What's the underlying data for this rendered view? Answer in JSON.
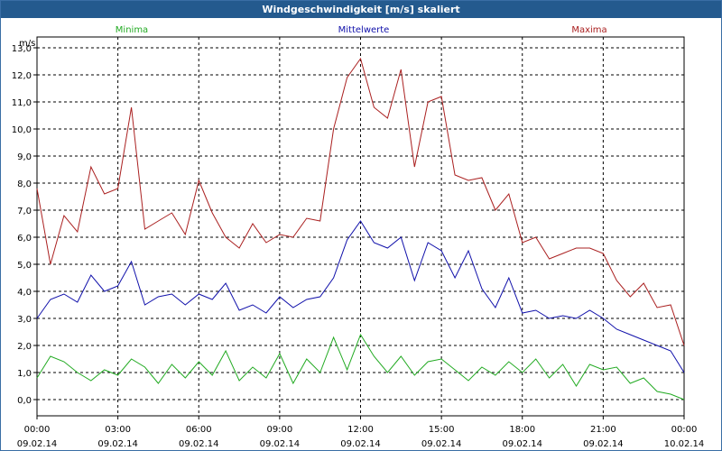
{
  "window": {
    "title": "Windgeschwindigkeit [m/s] skaliert"
  },
  "chart_data": {
    "type": "line",
    "title": "Windgeschwindigkeit [m/s] skaliert",
    "ylabel": "m/s",
    "xlabel": "",
    "ylim": [
      -0.6,
      13.4
    ],
    "y_ticks": [
      "0,0",
      "1,0",
      "2,0",
      "3,0",
      "4,0",
      "5,0",
      "6,0",
      "7,0",
      "8,0",
      "9,0",
      "10,0",
      "11,0",
      "12,0",
      "13,0"
    ],
    "x_ticks": [
      {
        "hour": 0,
        "time": "00:00",
        "date": "09.02.14"
      },
      {
        "hour": 3,
        "time": "03:00",
        "date": "09.02.14"
      },
      {
        "hour": 6,
        "time": "06:00",
        "date": "09.02.14"
      },
      {
        "hour": 9,
        "time": "09:00",
        "date": "09.02.14"
      },
      {
        "hour": 12,
        "time": "12:00",
        "date": "09.02.14"
      },
      {
        "hour": 15,
        "time": "15:00",
        "date": "09.02.14"
      },
      {
        "hour": 18,
        "time": "18:00",
        "date": "09.02.14"
      },
      {
        "hour": 21,
        "time": "21:00",
        "date": "09.02.14"
      },
      {
        "hour": 24,
        "time": "00:00",
        "date": "10.02.14"
      }
    ],
    "xlim": [
      0,
      24
    ],
    "grid": true,
    "legend_position": "top",
    "series": [
      {
        "name": "Minima",
        "color": "#22aa22",
        "x": [
          0,
          0.5,
          1,
          1.5,
          2,
          2.5,
          3,
          3.5,
          4,
          4.5,
          5,
          5.5,
          6,
          6.5,
          7,
          7.5,
          8,
          8.5,
          9,
          9.5,
          10,
          10.5,
          11,
          11.5,
          12,
          12.5,
          13,
          13.5,
          14,
          14.5,
          15,
          15.5,
          16,
          16.5,
          17,
          17.5,
          18,
          18.5,
          19,
          19.5,
          20,
          20.5,
          21,
          21.5,
          22,
          22.5,
          23,
          23.5,
          24
        ],
        "values": [
          0.8,
          1.6,
          1.4,
          1.0,
          0.7,
          1.1,
          0.9,
          1.5,
          1.2,
          0.6,
          1.3,
          0.8,
          1.4,
          0.9,
          1.8,
          0.7,
          1.2,
          0.8,
          1.7,
          0.6,
          1.5,
          1.0,
          2.3,
          1.1,
          2.4,
          1.6,
          1.0,
          1.6,
          0.9,
          1.4,
          1.5,
          1.1,
          0.7,
          1.2,
          0.9,
          1.4,
          1.0,
          1.5,
          0.8,
          1.3,
          0.5,
          1.3,
          1.1,
          1.2,
          0.6,
          0.8,
          0.3,
          0.2,
          0.0
        ]
      },
      {
        "name": "Mittelwerte",
        "color": "#1010aa",
        "x": [
          0,
          0.5,
          1,
          1.5,
          2,
          2.5,
          3,
          3.5,
          4,
          4.5,
          5,
          5.5,
          6,
          6.5,
          7,
          7.5,
          8,
          8.5,
          9,
          9.5,
          10,
          10.5,
          11,
          11.5,
          12,
          12.5,
          13,
          13.5,
          14,
          14.5,
          15,
          15.5,
          16,
          16.5,
          17,
          17.5,
          18,
          18.5,
          19,
          19.5,
          20,
          20.5,
          21,
          21.5,
          22,
          22.5,
          23,
          23.5,
          24
        ],
        "values": [
          3.0,
          3.7,
          3.9,
          3.6,
          4.6,
          4.0,
          4.2,
          5.1,
          3.5,
          3.8,
          3.9,
          3.5,
          3.9,
          3.7,
          4.3,
          3.3,
          3.5,
          3.2,
          3.8,
          3.4,
          3.7,
          3.8,
          4.5,
          5.9,
          6.6,
          5.8,
          5.6,
          6.0,
          4.4,
          5.8,
          5.5,
          4.5,
          5.5,
          4.1,
          3.4,
          4.5,
          3.2,
          3.3,
          3.0,
          3.1,
          3.0,
          3.3,
          3.0,
          2.6,
          2.4,
          2.2,
          2.0,
          1.8,
          1.0
        ]
      },
      {
        "name": "Maxima",
        "color": "#aa2020",
        "x": [
          0,
          0.5,
          1,
          1.5,
          2,
          2.5,
          3,
          3.5,
          4,
          4.5,
          5,
          5.5,
          6,
          6.5,
          7,
          7.5,
          8,
          8.5,
          9,
          9.5,
          10,
          10.5,
          11,
          11.5,
          12,
          12.5,
          13,
          13.5,
          14,
          14.5,
          15,
          15.5,
          16,
          16.5,
          17,
          17.5,
          18,
          18.5,
          19,
          19.5,
          20,
          20.5,
          21,
          21.5,
          22,
          22.5,
          23,
          23.5,
          24
        ],
        "values": [
          7.8,
          5.0,
          6.8,
          6.2,
          8.6,
          7.6,
          7.8,
          10.8,
          6.3,
          6.6,
          6.9,
          6.1,
          8.1,
          6.9,
          6.0,
          5.6,
          6.5,
          5.8,
          6.1,
          6.0,
          6.7,
          6.6,
          10.0,
          11.9,
          12.6,
          10.8,
          10.4,
          12.2,
          8.6,
          11.0,
          11.2,
          8.3,
          8.1,
          8.2,
          7.0,
          7.6,
          5.8,
          6.0,
          5.2,
          5.4,
          5.6,
          5.6,
          5.4,
          4.4,
          3.8,
          4.3,
          3.4,
          3.5,
          2.0
        ]
      }
    ]
  }
}
